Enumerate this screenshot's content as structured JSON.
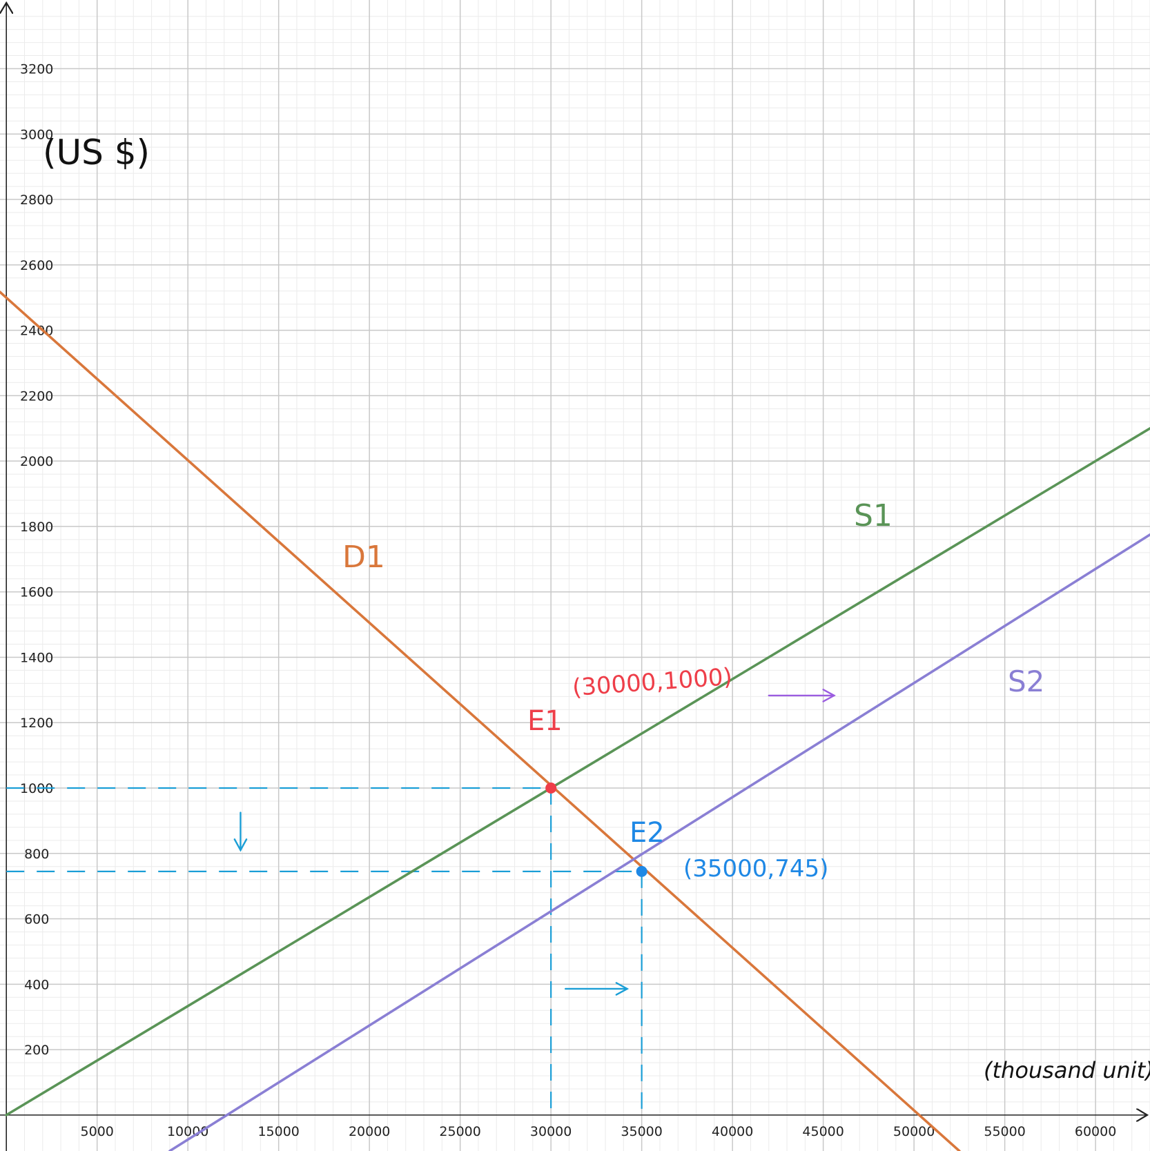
{
  "chart_data": {
    "type": "line",
    "ylabel": "(US $)",
    "xlabel": "(thousand unit)",
    "xlim": [
      -350,
      63000
    ],
    "ylim": [
      -110,
      3410
    ],
    "x_ticks": [
      5000,
      10000,
      15000,
      20000,
      25000,
      30000,
      35000,
      40000,
      45000,
      50000,
      55000,
      60000
    ],
    "y_ticks": [
      200,
      400,
      600,
      800,
      1000,
      1200,
      1400,
      1600,
      1800,
      2000,
      2200,
      2400,
      2600,
      2800,
      3000,
      3200
    ],
    "grid": true,
    "series": [
      {
        "name": "D1",
        "color": "#d9773b",
        "points": [
          [
            -350,
            2517
          ],
          [
            52500,
            -110
          ]
        ]
      },
      {
        "name": "S1",
        "color": "#5a9457",
        "points": [
          [
            0,
            0
          ],
          [
            63000,
            2100
          ]
        ]
      },
      {
        "name": "S2",
        "color": "#8a7fd4",
        "points": [
          [
            9000,
            -110
          ],
          [
            63000,
            1775
          ]
        ]
      }
    ],
    "equilibria": [
      {
        "name": "E1",
        "x": 30000,
        "y": 1000,
        "label": "(30000,1000)",
        "color": "#ee3e49"
      },
      {
        "name": "E2",
        "x": 35000,
        "y": 745,
        "label": "(35000,745)",
        "color": "#1e88e5"
      }
    ],
    "annotations": {
      "curve_labels": [
        "D1",
        "S1",
        "S2"
      ],
      "dashed_color": "#1a9ed6",
      "shift_arrow_color": "#9b5ce0"
    }
  }
}
